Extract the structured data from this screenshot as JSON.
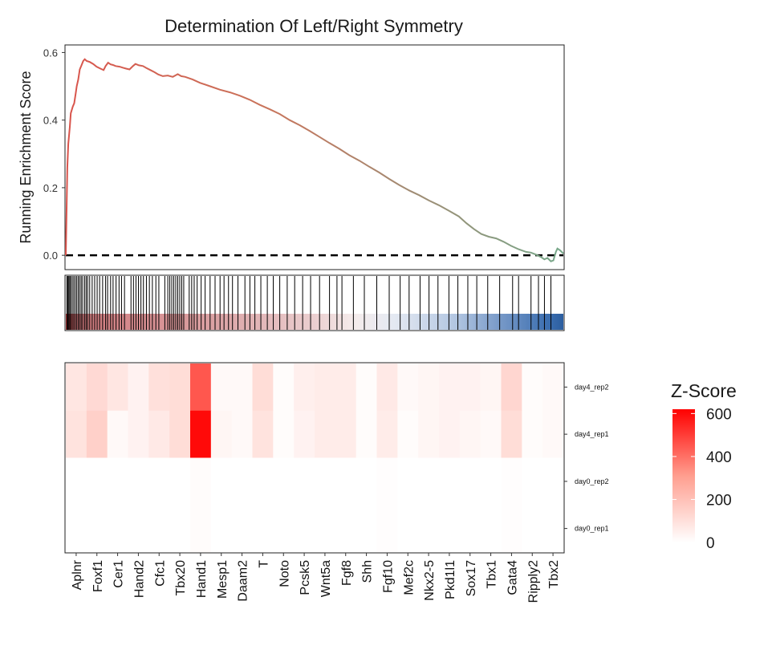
{
  "chart_data": {
    "type": "line",
    "title": "Determination Of Left/Right Symmetry",
    "ylabel": "Running Enrichment Score",
    "ylim": [
      -0.04,
      0.62
    ],
    "y_ticks": [
      "0.0",
      "0.2",
      "0.4",
      "0.6"
    ],
    "y_tick_values": [
      0.0,
      0.2,
      0.4,
      0.6
    ],
    "x_range": [
      0,
      1
    ],
    "baseline": 0.0,
    "running_es": [
      [
        0.0,
        0.0
      ],
      [
        0.003,
        0.26
      ],
      [
        0.005,
        0.33
      ],
      [
        0.008,
        0.38
      ],
      [
        0.01,
        0.42
      ],
      [
        0.014,
        0.44
      ],
      [
        0.017,
        0.45
      ],
      [
        0.02,
        0.48
      ],
      [
        0.022,
        0.5
      ],
      [
        0.025,
        0.52
      ],
      [
        0.028,
        0.55
      ],
      [
        0.031,
        0.56
      ],
      [
        0.035,
        0.575
      ],
      [
        0.038,
        0.58
      ],
      [
        0.042,
        0.575
      ],
      [
        0.048,
        0.572
      ],
      [
        0.055,
        0.566
      ],
      [
        0.062,
        0.558
      ],
      [
        0.07,
        0.552
      ],
      [
        0.076,
        0.548
      ],
      [
        0.08,
        0.56
      ],
      [
        0.085,
        0.57
      ],
      [
        0.09,
        0.565
      ],
      [
        0.095,
        0.563
      ],
      [
        0.1,
        0.56
      ],
      [
        0.108,
        0.558
      ],
      [
        0.115,
        0.555
      ],
      [
        0.122,
        0.552
      ],
      [
        0.128,
        0.55
      ],
      [
        0.135,
        0.56
      ],
      [
        0.14,
        0.566
      ],
      [
        0.147,
        0.562
      ],
      [
        0.155,
        0.56
      ],
      [
        0.162,
        0.554
      ],
      [
        0.17,
        0.548
      ],
      [
        0.178,
        0.542
      ],
      [
        0.186,
        0.535
      ],
      [
        0.195,
        0.53
      ],
      [
        0.205,
        0.532
      ],
      [
        0.215,
        0.528
      ],
      [
        0.225,
        0.536
      ],
      [
        0.232,
        0.53
      ],
      [
        0.24,
        0.528
      ],
      [
        0.255,
        0.52
      ],
      [
        0.27,
        0.51
      ],
      [
        0.29,
        0.5
      ],
      [
        0.31,
        0.49
      ],
      [
        0.33,
        0.482
      ],
      [
        0.35,
        0.472
      ],
      [
        0.37,
        0.46
      ],
      [
        0.39,
        0.445
      ],
      [
        0.41,
        0.432
      ],
      [
        0.43,
        0.418
      ],
      [
        0.45,
        0.4
      ],
      [
        0.47,
        0.385
      ],
      [
        0.49,
        0.368
      ],
      [
        0.51,
        0.35
      ],
      [
        0.53,
        0.332
      ],
      [
        0.55,
        0.315
      ],
      [
        0.57,
        0.296
      ],
      [
        0.59,
        0.28
      ],
      [
        0.61,
        0.262
      ],
      [
        0.63,
        0.245
      ],
      [
        0.65,
        0.226
      ],
      [
        0.67,
        0.208
      ],
      [
        0.69,
        0.192
      ],
      [
        0.71,
        0.178
      ],
      [
        0.73,
        0.162
      ],
      [
        0.75,
        0.148
      ],
      [
        0.77,
        0.132
      ],
      [
        0.79,
        0.115
      ],
      [
        0.805,
        0.095
      ],
      [
        0.82,
        0.078
      ],
      [
        0.835,
        0.063
      ],
      [
        0.85,
        0.055
      ],
      [
        0.865,
        0.05
      ],
      [
        0.88,
        0.04
      ],
      [
        0.895,
        0.028
      ],
      [
        0.91,
        0.018
      ],
      [
        0.925,
        0.01
      ],
      [
        0.935,
        0.008
      ],
      [
        0.945,
        0.002
      ],
      [
        0.955,
        -0.005
      ],
      [
        0.962,
        -0.012
      ],
      [
        0.968,
        -0.008
      ],
      [
        0.975,
        -0.018
      ],
      [
        0.98,
        -0.015
      ],
      [
        0.985,
        0.01
      ],
      [
        0.988,
        0.02
      ],
      [
        0.993,
        0.015
      ],
      [
        1.0,
        0.005
      ]
    ],
    "hits": [
      0.002,
      0.004,
      0.006,
      0.008,
      0.01,
      0.013,
      0.016,
      0.019,
      0.022,
      0.025,
      0.028,
      0.031,
      0.034,
      0.038,
      0.041,
      0.044,
      0.048,
      0.053,
      0.058,
      0.063,
      0.068,
      0.074,
      0.08,
      0.084,
      0.09,
      0.095,
      0.101,
      0.107,
      0.112,
      0.118,
      0.131,
      0.136,
      0.141,
      0.146,
      0.151,
      0.156,
      0.162,
      0.168,
      0.174,
      0.181,
      0.187,
      0.199,
      0.205,
      0.209,
      0.213,
      0.217,
      0.221,
      0.225,
      0.229,
      0.233,
      0.237,
      0.248,
      0.253,
      0.258,
      0.264,
      0.272,
      0.28,
      0.29,
      0.3,
      0.31,
      0.318,
      0.327,
      0.335,
      0.346,
      0.36,
      0.37,
      0.38,
      0.392,
      0.405,
      0.417,
      0.43,
      0.445,
      0.46,
      0.476,
      0.492,
      0.51,
      0.53,
      0.545,
      0.555,
      0.578,
      0.6,
      0.625,
      0.65,
      0.672,
      0.69,
      0.712,
      0.73,
      0.748,
      0.77,
      0.788,
      0.808,
      0.826,
      0.848,
      0.872,
      0.898,
      0.91,
      0.935,
      0.95,
      0.962,
      0.975
    ],
    "rank_gradient": [
      {
        "offset": 0.0,
        "color": "#c0393b"
      },
      {
        "offset": 0.02,
        "color": "#d27a7d"
      },
      {
        "offset": 0.3,
        "color": "#dba2a4"
      },
      {
        "offset": 0.5,
        "color": "#ebcfd0"
      },
      {
        "offset": 0.58,
        "color": "#f5ecec"
      },
      {
        "offset": 0.66,
        "color": "#e4e9f2"
      },
      {
        "offset": 0.78,
        "color": "#b4c7e2"
      },
      {
        "offset": 0.88,
        "color": "#7396c6"
      },
      {
        "offset": 0.97,
        "color": "#3b6eb0"
      },
      {
        "offset": 1.0,
        "color": "#2c5e9f"
      }
    ],
    "line_gradient": [
      {
        "offset": 0.0,
        "color": "#d9544c"
      },
      {
        "offset": 0.4,
        "color": "#c9745b"
      },
      {
        "offset": 0.7,
        "color": "#a08c74"
      },
      {
        "offset": 1.0,
        "color": "#76a88a"
      }
    ],
    "heatmap": {
      "genes": [
        "Aplnr",
        "Foxf1",
        "Cer1",
        "Hand2",
        "Cfc1",
        "Tbx20",
        "Hand1",
        "Mesp1",
        "Daam2",
        "T",
        "Noto",
        "Pcsk5",
        "Wnt5a",
        "Fgf8",
        "Shh",
        "Fgf10",
        "Mef2c",
        "Nkx2-5",
        "Pkd1l1",
        "Sox17",
        "Tbx1",
        "Gata4",
        "Ripply2",
        "Tbx2"
      ],
      "samples": [
        "day4_rep2",
        "day4_rep1",
        "day0_rep2",
        "day0_rep1"
      ],
      "values": [
        [
          80,
          120,
          80,
          40,
          100,
          110,
          450,
          20,
          20,
          110,
          10,
          50,
          60,
          60,
          10,
          70,
          20,
          30,
          40,
          40,
          30,
          130,
          10,
          20
        ],
        [
          90,
          150,
          20,
          40,
          70,
          110,
          600,
          30,
          20,
          90,
          10,
          40,
          60,
          60,
          10,
          60,
          10,
          30,
          40,
          30,
          20,
          110,
          10,
          20
        ],
        [
          0,
          0,
          0,
          0,
          0,
          0,
          10,
          0,
          0,
          0,
          0,
          0,
          0,
          0,
          0,
          5,
          0,
          0,
          0,
          0,
          0,
          5,
          0,
          0
        ],
        [
          0,
          0,
          0,
          0,
          0,
          0,
          10,
          0,
          0,
          0,
          0,
          0,
          0,
          0,
          0,
          5,
          0,
          0,
          0,
          0,
          0,
          5,
          0,
          0
        ]
      ]
    },
    "legend": {
      "title": "Z-Score",
      "ticks": [
        "600",
        "400",
        "200",
        "0"
      ],
      "tick_values": [
        600,
        400,
        200,
        0
      ],
      "max": 620,
      "low_color": "#ffffff",
      "high_color": "#ff0000"
    }
  }
}
